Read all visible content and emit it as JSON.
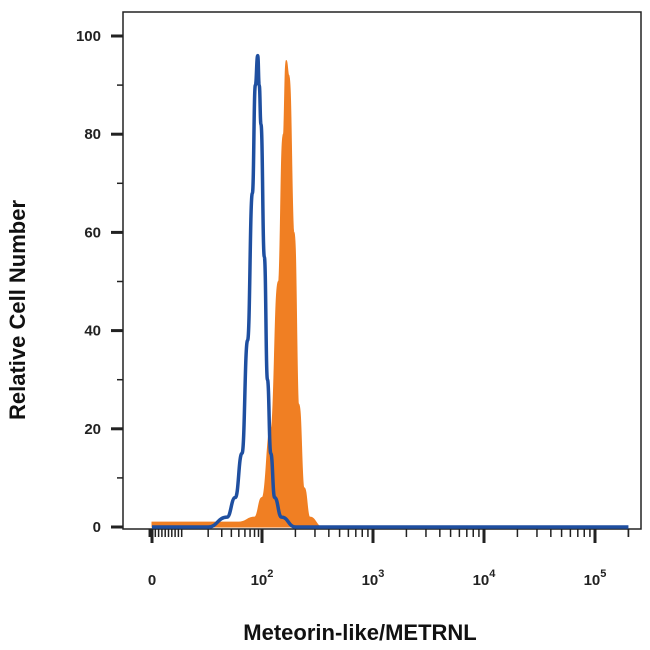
{
  "chart_data": {
    "type": "area",
    "title": "",
    "xlabel": "Meteorin-like/METRNL",
    "ylabel": "Relative Cell Number",
    "x_scale": "biexponential",
    "xlim": [
      -10,
      200000
    ],
    "ylim": [
      0,
      100
    ],
    "y_ticks": [
      0,
      20,
      40,
      60,
      80,
      100
    ],
    "x_ticks": [
      {
        "base": "0",
        "exp": ""
      },
      {
        "base": "10",
        "exp": "2"
      },
      {
        "base": "10",
        "exp": "3"
      },
      {
        "base": "10",
        "exp": "4"
      },
      {
        "base": "10",
        "exp": "5"
      }
    ],
    "grid": false,
    "series": [
      {
        "style": "filled",
        "color": "#f07f23",
        "points": [
          [
            0,
            1
          ],
          [
            50,
            1
          ],
          [
            80,
            2
          ],
          [
            100,
            6
          ],
          [
            120,
            20
          ],
          [
            140,
            50
          ],
          [
            155,
            80
          ],
          [
            165,
            95
          ],
          [
            175,
            92
          ],
          [
            195,
            60
          ],
          [
            215,
            25
          ],
          [
            240,
            8
          ],
          [
            270,
            2
          ],
          [
            350,
            0
          ],
          [
            200000,
            0
          ]
        ]
      },
      {
        "style": "outline",
        "color": "#1f4fa0",
        "points": [
          [
            0,
            0
          ],
          [
            20,
            0
          ],
          [
            35,
            2
          ],
          [
            45,
            6
          ],
          [
            55,
            15
          ],
          [
            65,
            38
          ],
          [
            75,
            68
          ],
          [
            82,
            90
          ],
          [
            88,
            96
          ],
          [
            92,
            90
          ],
          [
            97,
            82
          ],
          [
            105,
            55
          ],
          [
            112,
            30
          ],
          [
            120,
            15
          ],
          [
            130,
            6
          ],
          [
            150,
            2
          ],
          [
            200,
            0
          ],
          [
            200000,
            0
          ]
        ]
      }
    ]
  }
}
